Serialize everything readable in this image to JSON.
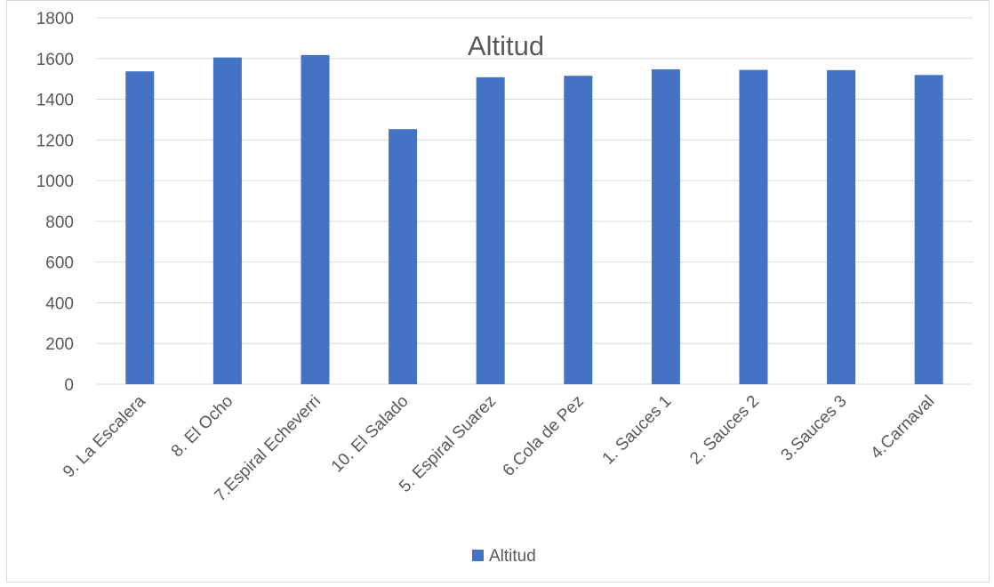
{
  "chart_data": {
    "type": "bar",
    "title": "Altitud",
    "xlabel": "",
    "ylabel": "",
    "categories": [
      "9. La Escalera",
      "8. El Ocho",
      "7.Espiral Echeverri",
      "10. El Salado",
      "5. Espiral Suarez",
      "6.Cola de Pez",
      "1. Sauces 1",
      "2. Sauces 2",
      "3.Sauces 3",
      "4.Carnaval"
    ],
    "series": [
      {
        "name": "Altitud",
        "values": [
          1537,
          1605,
          1617,
          1253,
          1508,
          1515,
          1547,
          1544,
          1543,
          1519
        ]
      }
    ],
    "ylim": [
      0,
      1800
    ],
    "yticks": [
      0,
      200,
      400,
      600,
      800,
      1000,
      1200,
      1400,
      1600,
      1800
    ],
    "grid": true,
    "legend_position": "bottom",
    "colors": {
      "bar": "#4472C4",
      "grid": "#d9d9d9",
      "axis_text": "#595959"
    }
  }
}
